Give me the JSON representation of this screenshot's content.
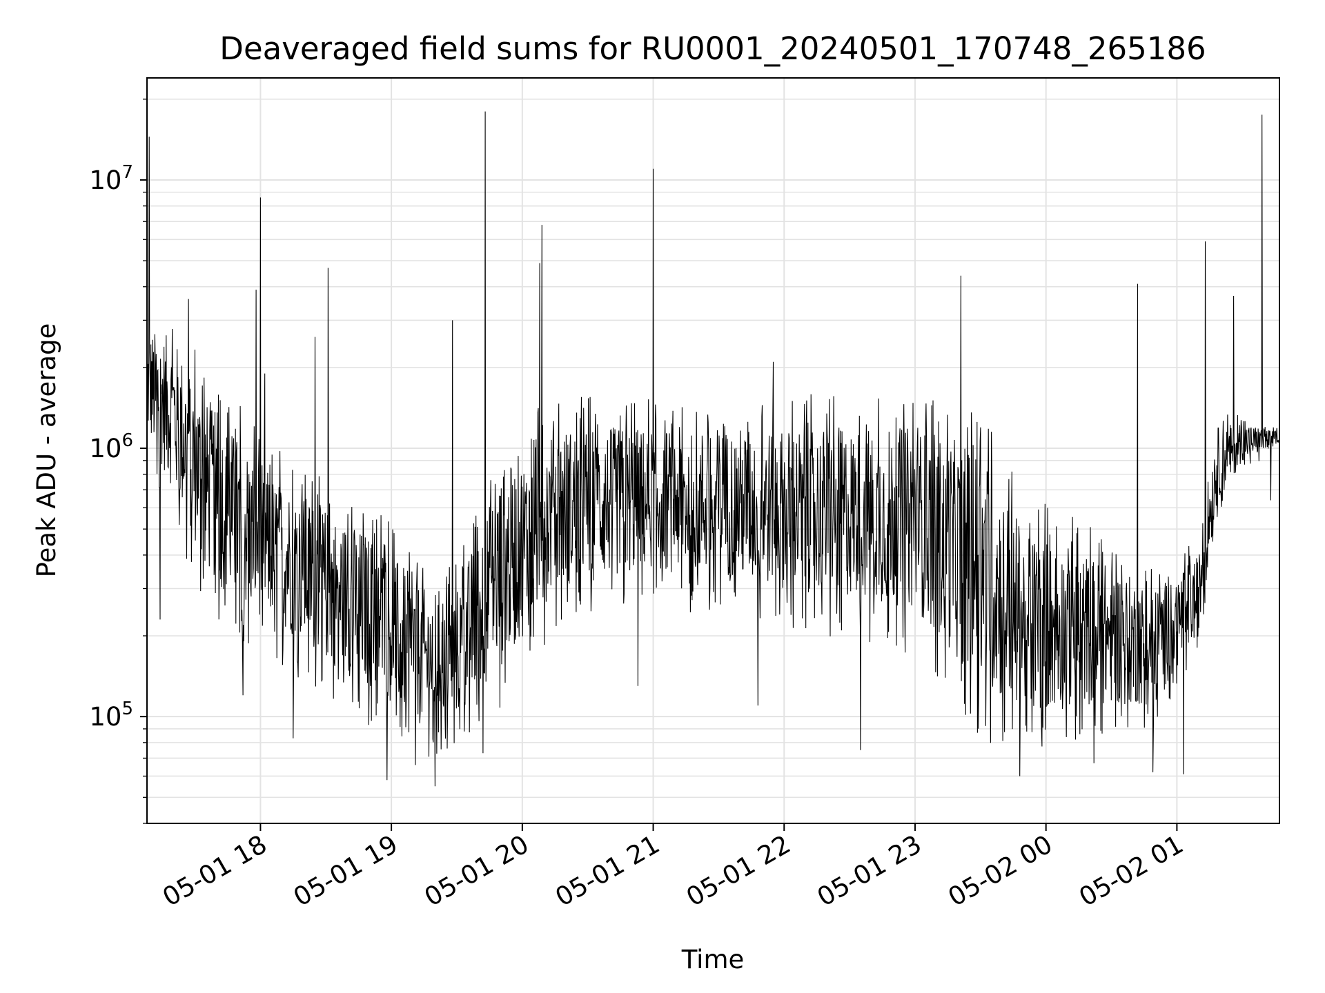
{
  "chart_data": {
    "type": "line",
    "title": "Deaveraged field sums for RU0001_20240501_170748_265186",
    "xlabel": "Time",
    "ylabel": "Peak ADU - average",
    "y_scale": "log",
    "ylim": [
      40000,
      24000000
    ],
    "xlim": [
      "2024-05-01 17:08",
      "2024-05-02 01:47"
    ],
    "grid": true,
    "x_ticks": [
      {
        "t": "2024-05-01 18:00",
        "label": "05-01 18"
      },
      {
        "t": "2024-05-01 19:00",
        "label": "05-01 19"
      },
      {
        "t": "2024-05-01 20:00",
        "label": "05-01 20"
      },
      {
        "t": "2024-05-01 21:00",
        "label": "05-01 21"
      },
      {
        "t": "2024-05-01 22:00",
        "label": "05-01 22"
      },
      {
        "t": "2024-05-01 23:00",
        "label": "05-01 23"
      },
      {
        "t": "2024-05-02 00:00",
        "label": "05-02 00"
      },
      {
        "t": "2024-05-02 01:00",
        "label": "05-02 01"
      }
    ],
    "y_ticks": [
      {
        "value": 100000,
        "base": "10",
        "exp": "5"
      },
      {
        "value": 1000000,
        "base": "10",
        "exp": "6"
      },
      {
        "value": 10000000,
        "base": "10",
        "exp": "7"
      }
    ],
    "series": [
      {
        "color": "#000000",
        "envelope": [
          {
            "t": "2024-05-01 17:08",
            "low": 1100000,
            "high": 2800000
          },
          {
            "t": "2024-05-01 17:20",
            "low": 700000,
            "high": 2600000
          },
          {
            "t": "2024-05-01 17:35",
            "low": 350000,
            "high": 1500000
          },
          {
            "t": "2024-05-01 17:50",
            "low": 250000,
            "high": 1100000
          },
          {
            "t": "2024-05-01 18:05",
            "low": 230000,
            "high": 800000
          },
          {
            "t": "2024-05-01 18:30",
            "low": 160000,
            "high": 600000
          },
          {
            "t": "2024-05-01 18:55",
            "low": 120000,
            "high": 450000
          },
          {
            "t": "2024-05-01 19:15",
            "low": 90000,
            "high": 300000
          },
          {
            "t": "2024-05-01 19:30",
            "low": 100000,
            "high": 300000
          },
          {
            "t": "2024-05-01 19:50",
            "low": 150000,
            "high": 800000
          },
          {
            "t": "2024-05-01 20:15",
            "low": 300000,
            "high": 1200000
          },
          {
            "t": "2024-05-01 21:00",
            "low": 350000,
            "high": 1200000
          },
          {
            "t": "2024-05-01 22:00",
            "low": 300000,
            "high": 1200000
          },
          {
            "t": "2024-05-01 23:00",
            "low": 250000,
            "high": 1200000
          },
          {
            "t": "2024-05-01 23:30",
            "low": 130000,
            "high": 1000000
          },
          {
            "t": "2024-05-01 23:50",
            "low": 100000,
            "high": 500000
          },
          {
            "t": "2024-05-02 00:20",
            "low": 110000,
            "high": 400000
          },
          {
            "t": "2024-05-02 00:50",
            "low": 110000,
            "high": 300000
          },
          {
            "t": "2024-05-02 01:10",
            "low": 200000,
            "high": 400000
          },
          {
            "t": "2024-05-02 01:18",
            "low": 600000,
            "high": 1200000
          },
          {
            "t": "2024-05-02 01:30",
            "low": 900000,
            "high": 1250000
          },
          {
            "t": "2024-05-02 01:47",
            "low": 1000000,
            "high": 1150000
          }
        ],
        "spikes": [
          {
            "t": "2024-05-01 17:09",
            "value": 14500000
          },
          {
            "t": "2024-05-01 17:14",
            "value": 230000
          },
          {
            "t": "2024-05-01 17:27",
            "value": 3600000
          },
          {
            "t": "2024-05-01 17:52",
            "value": 120000
          },
          {
            "t": "2024-05-01 17:58",
            "value": 3900000
          },
          {
            "t": "2024-05-01 18:00",
            "value": 8600000
          },
          {
            "t": "2024-05-01 18:02",
            "value": 1900000
          },
          {
            "t": "2024-05-01 18:15",
            "value": 83000
          },
          {
            "t": "2024-05-01 18:25",
            "value": 2600000
          },
          {
            "t": "2024-05-01 18:31",
            "value": 4700000
          },
          {
            "t": "2024-05-01 18:58",
            "value": 58000
          },
          {
            "t": "2024-05-01 19:11",
            "value": 66000
          },
          {
            "t": "2024-05-01 19:20",
            "value": 55000
          },
          {
            "t": "2024-05-01 19:28",
            "value": 3000000
          },
          {
            "t": "2024-05-01 19:42",
            "value": 73000
          },
          {
            "t": "2024-05-01 19:43",
            "value": 18000000
          },
          {
            "t": "2024-05-01 20:08",
            "value": 4900000
          },
          {
            "t": "2024-05-01 20:09",
            "value": 6800000
          },
          {
            "t": "2024-05-01 20:53",
            "value": 130000
          },
          {
            "t": "2024-05-01 21:00",
            "value": 11000000
          },
          {
            "t": "2024-05-01 21:48",
            "value": 110000
          },
          {
            "t": "2024-05-01 21:55",
            "value": 2100000
          },
          {
            "t": "2024-05-01 22:35",
            "value": 75000
          },
          {
            "t": "2024-05-01 23:21",
            "value": 4400000
          },
          {
            "t": "2024-05-01 23:48",
            "value": 60000
          },
          {
            "t": "2024-05-02 00:22",
            "value": 67000
          },
          {
            "t": "2024-05-02 00:42",
            "value": 4100000
          },
          {
            "t": "2024-05-02 00:49",
            "value": 62000
          },
          {
            "t": "2024-05-02 01:03",
            "value": 61000
          },
          {
            "t": "2024-05-02 01:13",
            "value": 5900000
          },
          {
            "t": "2024-05-02 01:26",
            "value": 3700000
          },
          {
            "t": "2024-05-02 01:39",
            "value": 17500000
          },
          {
            "t": "2024-05-02 01:43",
            "value": 640000
          }
        ]
      }
    ]
  }
}
